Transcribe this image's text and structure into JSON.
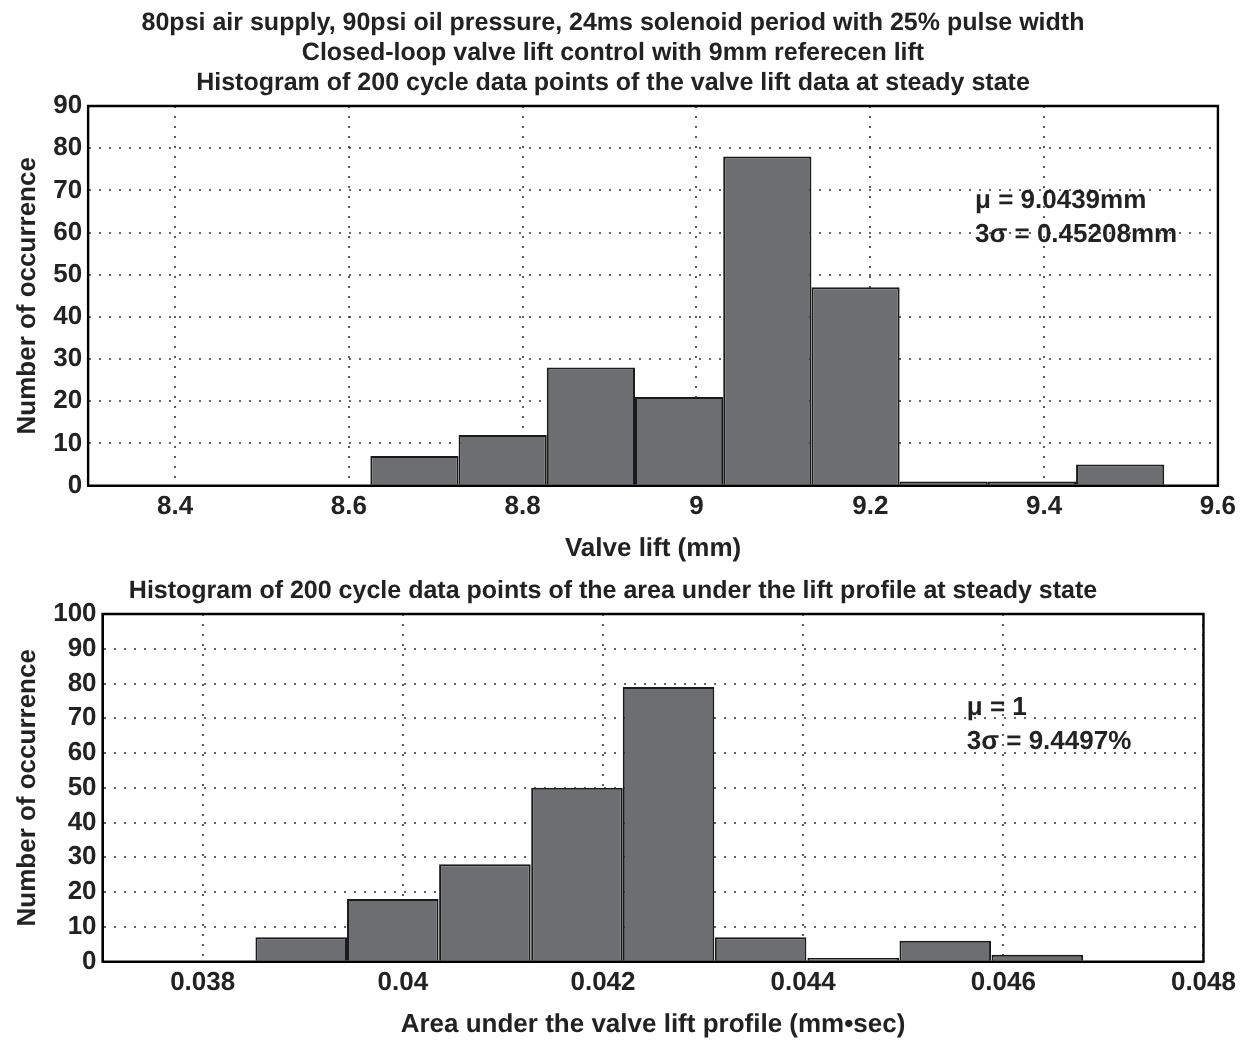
{
  "chart_data": [
    {
      "type": "histogram",
      "title": "80psi air supply, 90psi oil pressure, 24ms solenoid period with 25% pulse width\nClosed-loop valve lift control with 9mm referecen lift\nHistogram of 200 cycle data points of the valve lift data at steady state",
      "xlabel": "Valve lift (mm)",
      "ylabel": "Number of occurrence",
      "bins": [
        8.625,
        8.726,
        8.828,
        8.929,
        9.031,
        9.132,
        9.234,
        9.335,
        9.437,
        9.538
      ],
      "values": [
        7,
        12,
        28,
        21,
        78,
        47,
        1,
        1,
        5
      ],
      "color": "#6d6e71",
      "xlim": [
        8.3,
        9.6
      ],
      "xticks": [
        8.4,
        8.6,
        8.8,
        9,
        9.2,
        9.4,
        9.6
      ],
      "ylim": [
        0,
        90
      ],
      "yticks": [
        0,
        10,
        20,
        30,
        40,
        50,
        60,
        70,
        80,
        90
      ],
      "grid": true,
      "annotations": [
        "μ = 9.0439mm",
        "3σ = 0.45208mm"
      ]
    },
    {
      "type": "histogram",
      "title": "Histogram of 200 cycle data points of the area under the lift profile at steady state",
      "xlabel": "Area under the valve lift profile (mm•sec)",
      "ylabel": "Number of occurrence",
      "bins": [
        0.03853,
        0.03944,
        0.04036,
        0.04128,
        0.0422,
        0.04311,
        0.04404,
        0.04496,
        0.04588,
        0.0468
      ],
      "values": [
        7,
        18,
        28,
        50,
        79,
        7,
        1,
        6,
        2
      ],
      "color": "#6d6e71",
      "xlim": [
        0.037,
        0.048
      ],
      "xticks": [
        0.038,
        0.04,
        0.042,
        0.044,
        0.046,
        0.048
      ],
      "ylim": [
        0,
        100
      ],
      "yticks": [
        0,
        10,
        20,
        30,
        40,
        50,
        60,
        70,
        80,
        90,
        100
      ],
      "grid": true,
      "annotations": [
        "μ = 1",
        "3σ = 9.4497%"
      ]
    }
  ]
}
